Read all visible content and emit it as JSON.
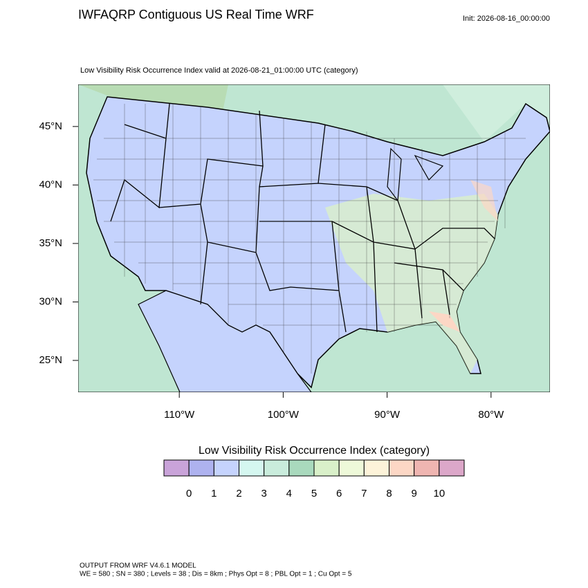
{
  "header": {
    "title": "IWFAQRP Contiguous US Real Time WRF",
    "init": "Init: 2026-08-16_00:00:00"
  },
  "map": {
    "subtitle": "Low Visibility Risk Occurrence Index valid at 2026-08-21_01:00:00 UTC   (category)",
    "xlim": [
      -119.73,
      -74.33
    ],
    "ylim": [
      22.28,
      48.6
    ],
    "lat_ticks": [
      {
        "value": 45,
        "label": "45°N"
      },
      {
        "value": 40,
        "label": "40°N"
      },
      {
        "value": 35,
        "label": "35°N"
      },
      {
        "value": 30,
        "label": "30°N"
      },
      {
        "value": 25,
        "label": "25°N"
      }
    ],
    "lon_ticks": [
      {
        "value": -110,
        "label": "110°W"
      },
      {
        "value": -100,
        "label": "100°W"
      },
      {
        "value": -90,
        "label": "90°W"
      },
      {
        "value": -80,
        "label": "80°W"
      }
    ]
  },
  "colorbar": {
    "title": "Low Visibility Risk Occurrence Index  (category)",
    "labels": [
      0,
      1,
      2,
      3,
      4,
      5,
      6,
      7,
      8,
      9,
      10
    ],
    "colors": [
      "#c9a3d9",
      "#aeb2ef",
      "#c5d3fd",
      "#d5f7f0",
      "#c9ecdc",
      "#a9d9bd",
      "#d9f0c9",
      "#eef9d9",
      "#fdf3d9",
      "#fcd7c5",
      "#efb5b1",
      "#dca7c9"
    ]
  },
  "footer": {
    "lines": [
      "OUTPUT FROM WRF V4.6.1 MODEL",
      "WE = 580 ; SN = 380 ; Levels = 38 ; Dis = 8km ; Phys Opt = 8 ; PBL Opt = 1 ; Cu Opt = 5"
    ]
  }
}
